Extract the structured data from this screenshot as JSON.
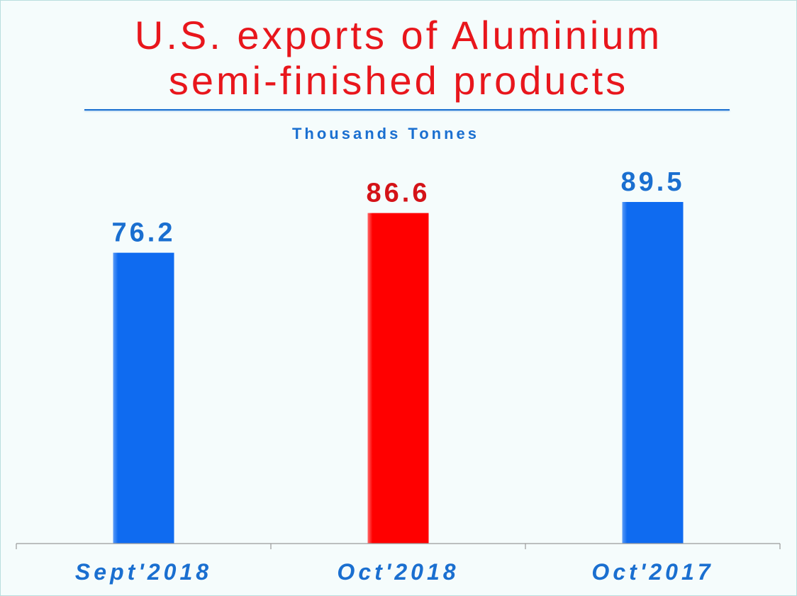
{
  "chart_data": {
    "type": "bar",
    "title_line1": "U.S. exports of Aluminium",
    "title_line2": "semi-finished products",
    "subtitle": "Thousands Tonnes",
    "categories": [
      "Sept'2018",
      "Oct'2018",
      "Oct'2017"
    ],
    "values": [
      76.2,
      86.6,
      89.5
    ],
    "value_labels": [
      "76.2",
      "86.6",
      "89.5"
    ],
    "bar_colors": [
      "#0f6bf0",
      "#ff0000",
      "#0f6bf0"
    ],
    "label_colors": [
      "#1a6fd0",
      "#d41318",
      "#1a6fd0"
    ],
    "ylim": [
      0,
      89.5
    ],
    "xlabel": "",
    "ylabel": "",
    "grid": false,
    "legend": "none"
  }
}
